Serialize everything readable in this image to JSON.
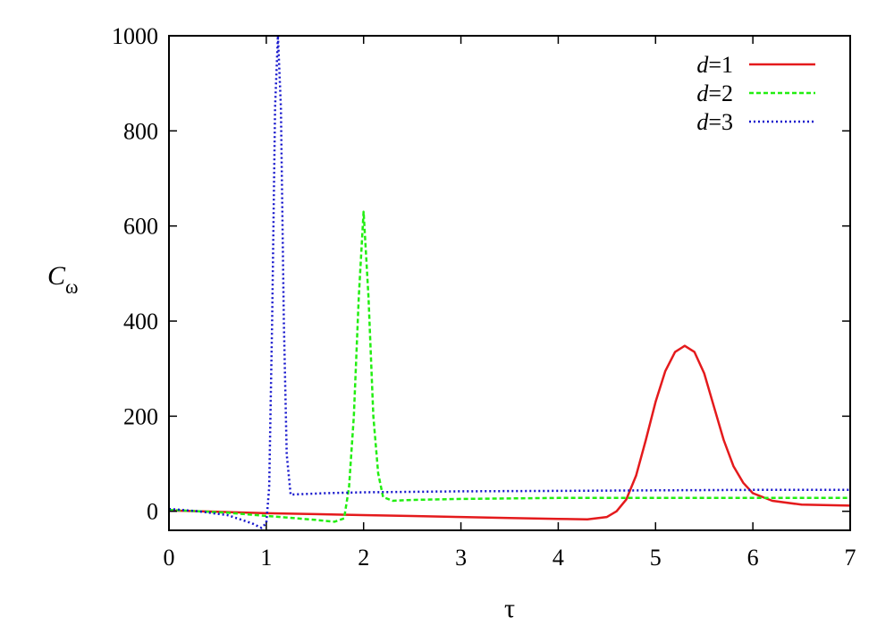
{
  "chart_data": {
    "type": "line",
    "title": "",
    "xlabel": "τ",
    "ylabel": {
      "base": "C",
      "subscript": "ω"
    },
    "xlim": [
      0,
      7
    ],
    "ylim": [
      -40,
      1000
    ],
    "xticks": [
      0,
      1,
      2,
      3,
      4,
      5,
      6,
      7
    ],
    "yticks": [
      0,
      200,
      400,
      600,
      800,
      1000
    ],
    "grid": false,
    "legend_position": "top-right",
    "series": [
      {
        "name": "d=1",
        "name_italic": "d",
        "name_rest": "=1",
        "color": "#e41a1c",
        "dash": "solid",
        "x": [
          0,
          0.5,
          1.0,
          1.5,
          2.0,
          2.5,
          3.0,
          3.5,
          4.0,
          4.3,
          4.5,
          4.6,
          4.7,
          4.8,
          4.9,
          5.0,
          5.1,
          5.2,
          5.3,
          5.4,
          5.5,
          5.6,
          5.7,
          5.8,
          5.9,
          6.0,
          6.2,
          6.5,
          7.0
        ],
        "y": [
          2,
          -1,
          -4,
          -6,
          -8,
          -10,
          -12,
          -14,
          -16,
          -17,
          -12,
          0,
          25,
          75,
          150,
          230,
          295,
          335,
          348,
          335,
          290,
          220,
          150,
          95,
          60,
          38,
          22,
          14,
          12
        ]
      },
      {
        "name": "d=2",
        "name_italic": "d",
        "name_rest": "=2",
        "color": "#22ee11",
        "dash": "5,3",
        "x": [
          0,
          0.3,
          0.6,
          0.9,
          1.2,
          1.5,
          1.7,
          1.8,
          1.85,
          1.9,
          1.95,
          2.0,
          2.05,
          2.1,
          2.15,
          2.2,
          2.3,
          2.5,
          3.0,
          4.0,
          5.0,
          6.0,
          7.0
        ],
        "y": [
          3,
          0,
          -3,
          -8,
          -13,
          -18,
          -22,
          -15,
          50,
          200,
          450,
          630,
          450,
          200,
          80,
          30,
          22,
          24,
          26,
          28,
          28,
          28,
          28
        ]
      },
      {
        "name": "d=3",
        "name_italic": "d",
        "name_rest": "=3",
        "color": "#1414cc",
        "dash": "2,3",
        "x": [
          0,
          0.3,
          0.6,
          0.85,
          0.95,
          1.0,
          1.03,
          1.06,
          1.09,
          1.12,
          1.15,
          1.18,
          1.21,
          1.25,
          1.35,
          1.6,
          2.0,
          3.0,
          4.0,
          5.0,
          6.0,
          7.0
        ],
        "y": [
          5,
          0,
          -8,
          -25,
          -35,
          -25,
          50,
          400,
          850,
          1000,
          850,
          400,
          120,
          35,
          36,
          38,
          40,
          42,
          43,
          44,
          45,
          45
        ]
      }
    ]
  }
}
